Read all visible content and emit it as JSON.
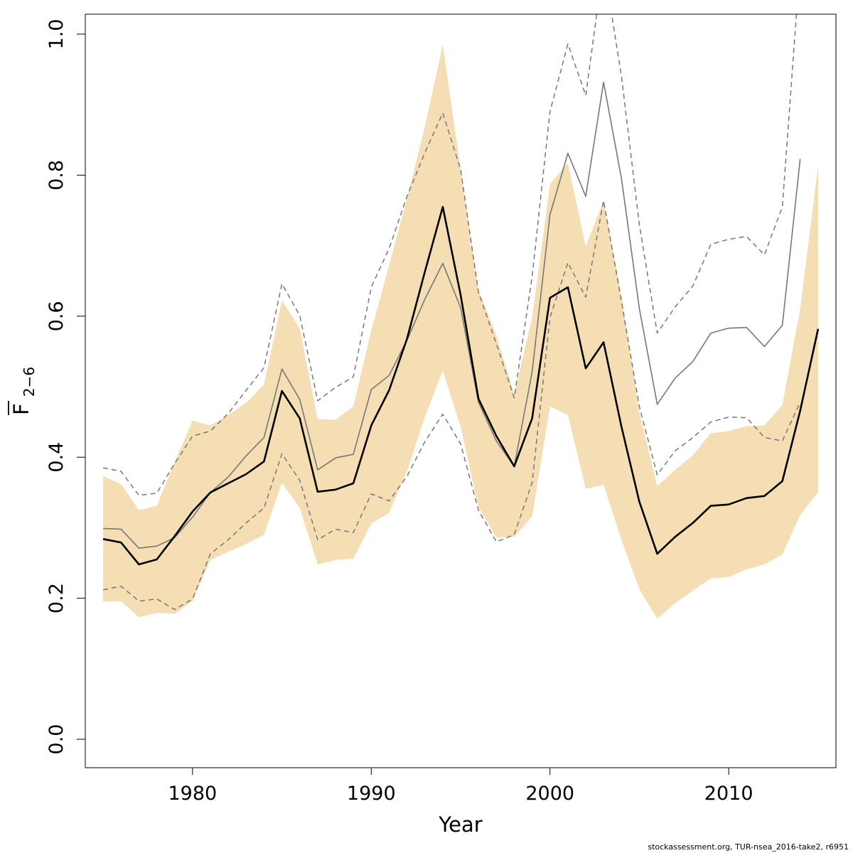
{
  "chart_data": {
    "type": "line",
    "xlabel": "Year",
    "ylabel": {
      "main": "F",
      "sub": "2−6"
    },
    "xlim": [
      1974,
      2016
    ],
    "ylim": [
      0,
      1
    ],
    "x_ticks": [
      1980,
      1990,
      2000,
      2010
    ],
    "y_ticks": [
      "0.0",
      "0.2",
      "0.4",
      "0.6",
      "0.8",
      "1.0"
    ],
    "y_tick_values": [
      0,
      0.2,
      0.4,
      0.6,
      0.8,
      1.0
    ],
    "grid": false,
    "colors": {
      "band": "#F5DEB3",
      "main": "#000000",
      "retro": "#777777"
    },
    "series": [
      {
        "role": "band",
        "x": [
          1975,
          1976,
          1977,
          1978,
          1979,
          1980,
          1981,
          1982,
          1983,
          1984,
          1985,
          1986,
          1987,
          1988,
          1989,
          1990,
          1991,
          1992,
          1993,
          1994,
          1995,
          1996,
          1997,
          1998,
          1999,
          2000,
          2001,
          2002,
          2003,
          2004,
          2005,
          2006,
          2007,
          2008,
          2009,
          2010,
          2011,
          2012,
          2013,
          2014,
          2015
        ],
        "lower": [
          0.195,
          0.196,
          0.173,
          0.179,
          0.178,
          0.196,
          0.254,
          0.266,
          0.277,
          0.29,
          0.364,
          0.328,
          0.248,
          0.254,
          0.256,
          0.306,
          0.321,
          0.38,
          0.457,
          0.523,
          0.443,
          0.329,
          0.286,
          0.287,
          0.316,
          0.472,
          0.46,
          0.355,
          0.361,
          0.283,
          0.213,
          0.171,
          0.193,
          0.211,
          0.228,
          0.23,
          0.241,
          0.248,
          0.262,
          0.318,
          0.35
        ],
        "upper": [
          0.373,
          0.362,
          0.325,
          0.331,
          0.393,
          0.452,
          0.445,
          0.46,
          0.477,
          0.503,
          0.622,
          0.583,
          0.454,
          0.453,
          0.472,
          0.58,
          0.672,
          0.767,
          0.869,
          0.985,
          0.808,
          0.637,
          0.573,
          0.489,
          0.598,
          0.787,
          0.817,
          0.699,
          0.764,
          0.629,
          0.464,
          0.359,
          0.382,
          0.403,
          0.434,
          0.437,
          0.444,
          0.445,
          0.474,
          0.61,
          0.813
        ]
      },
      {
        "role": "estimate",
        "x": [
          1975,
          1976,
          1977,
          1978,
          1979,
          1980,
          1981,
          1982,
          1983,
          1984,
          1985,
          1986,
          1987,
          1988,
          1989,
          1990,
          1991,
          1992,
          1993,
          1994,
          1995,
          1996,
          1997,
          1998,
          1999,
          2000,
          2001,
          2002,
          2003,
          2004,
          2005,
          2006,
          2007,
          2008,
          2009,
          2010,
          2011,
          2012,
          2013,
          2014,
          2015
        ],
        "values": [
          0.284,
          0.279,
          0.248,
          0.255,
          0.288,
          0.323,
          0.35,
          0.363,
          0.376,
          0.394,
          0.494,
          0.455,
          0.351,
          0.354,
          0.363,
          0.445,
          0.495,
          0.568,
          0.663,
          0.755,
          0.63,
          0.483,
          0.43,
          0.387,
          0.455,
          0.626,
          0.641,
          0.526,
          0.563,
          0.443,
          0.337,
          0.263,
          0.287,
          0.307,
          0.331,
          0.333,
          0.342,
          0.345,
          0.366,
          0.466,
          0.582
        ]
      },
      {
        "role": "previous-estimate",
        "x": [
          1975,
          1976,
          1977,
          1978,
          1979,
          1980,
          1981,
          1982,
          1983,
          1984,
          1985,
          1986,
          1987,
          1988,
          1989,
          1990,
          1991,
          1992,
          1993,
          1994,
          1995,
          1996,
          1997,
          1998,
          1999,
          2000,
          2001,
          2002,
          2003,
          2004,
          2005,
          2006,
          2007,
          2008,
          2009,
          2010,
          2011,
          2012,
          2013,
          2014
        ],
        "values": [
          0.299,
          0.298,
          0.271,
          0.274,
          0.286,
          0.315,
          0.35,
          0.372,
          0.402,
          0.428,
          0.525,
          0.482,
          0.382,
          0.399,
          0.404,
          0.496,
          0.516,
          0.566,
          0.624,
          0.675,
          0.612,
          0.478,
          0.423,
          0.387,
          0.521,
          0.744,
          0.831,
          0.77,
          0.932,
          0.795,
          0.611,
          0.475,
          0.512,
          0.536,
          0.576,
          0.583,
          0.584,
          0.557,
          0.587,
          0.823
        ]
      },
      {
        "role": "previous-upper",
        "x": [
          1975,
          1976,
          1977,
          1978,
          1979,
          1980,
          1981,
          1982,
          1983,
          1984,
          1985,
          1986,
          1987,
          1988,
          1989,
          1990,
          1991,
          1992,
          1993,
          1994,
          1995,
          1996,
          1997,
          1998,
          1999,
          2000,
          2001,
          2002,
          2003,
          2004,
          2005,
          2006,
          2007,
          2008,
          2009,
          2010,
          2011,
          2012,
          2013,
          2014
        ],
        "values": [
          0.385,
          0.38,
          0.346,
          0.349,
          0.391,
          0.43,
          0.437,
          0.462,
          0.495,
          0.527,
          0.646,
          0.601,
          0.48,
          0.499,
          0.514,
          0.641,
          0.696,
          0.77,
          0.832,
          0.888,
          0.808,
          0.634,
          0.561,
          0.484,
          0.656,
          0.89,
          0.986,
          0.913,
          1.1,
          0.94,
          0.73,
          0.576,
          0.613,
          0.643,
          0.702,
          0.709,
          0.713,
          0.687,
          0.755,
          1.1
        ]
      },
      {
        "role": "previous-lower",
        "x": [
          1975,
          1976,
          1977,
          1978,
          1979,
          1980,
          1981,
          1982,
          1983,
          1984,
          1985,
          1986,
          1987,
          1988,
          1989,
          1990,
          1991,
          1992,
          1993,
          1994,
          1995,
          1996,
          1997,
          1998,
          1999,
          2000,
          2001,
          2002,
          2003,
          2004,
          2005,
          2006,
          2007,
          2008,
          2009,
          2010,
          2011,
          2012,
          2013,
          2014
        ],
        "values": [
          0.212,
          0.217,
          0.196,
          0.199,
          0.184,
          0.199,
          0.263,
          0.283,
          0.307,
          0.328,
          0.405,
          0.367,
          0.283,
          0.298,
          0.293,
          0.348,
          0.338,
          0.373,
          0.422,
          0.461,
          0.419,
          0.325,
          0.28,
          0.29,
          0.364,
          0.598,
          0.676,
          0.627,
          0.764,
          0.621,
          0.472,
          0.375,
          0.409,
          0.428,
          0.45,
          0.457,
          0.456,
          0.428,
          0.423,
          0.478
        ]
      }
    ]
  },
  "footer": "stockassessment.org, TUR-nsea_2016-take2, r6951"
}
